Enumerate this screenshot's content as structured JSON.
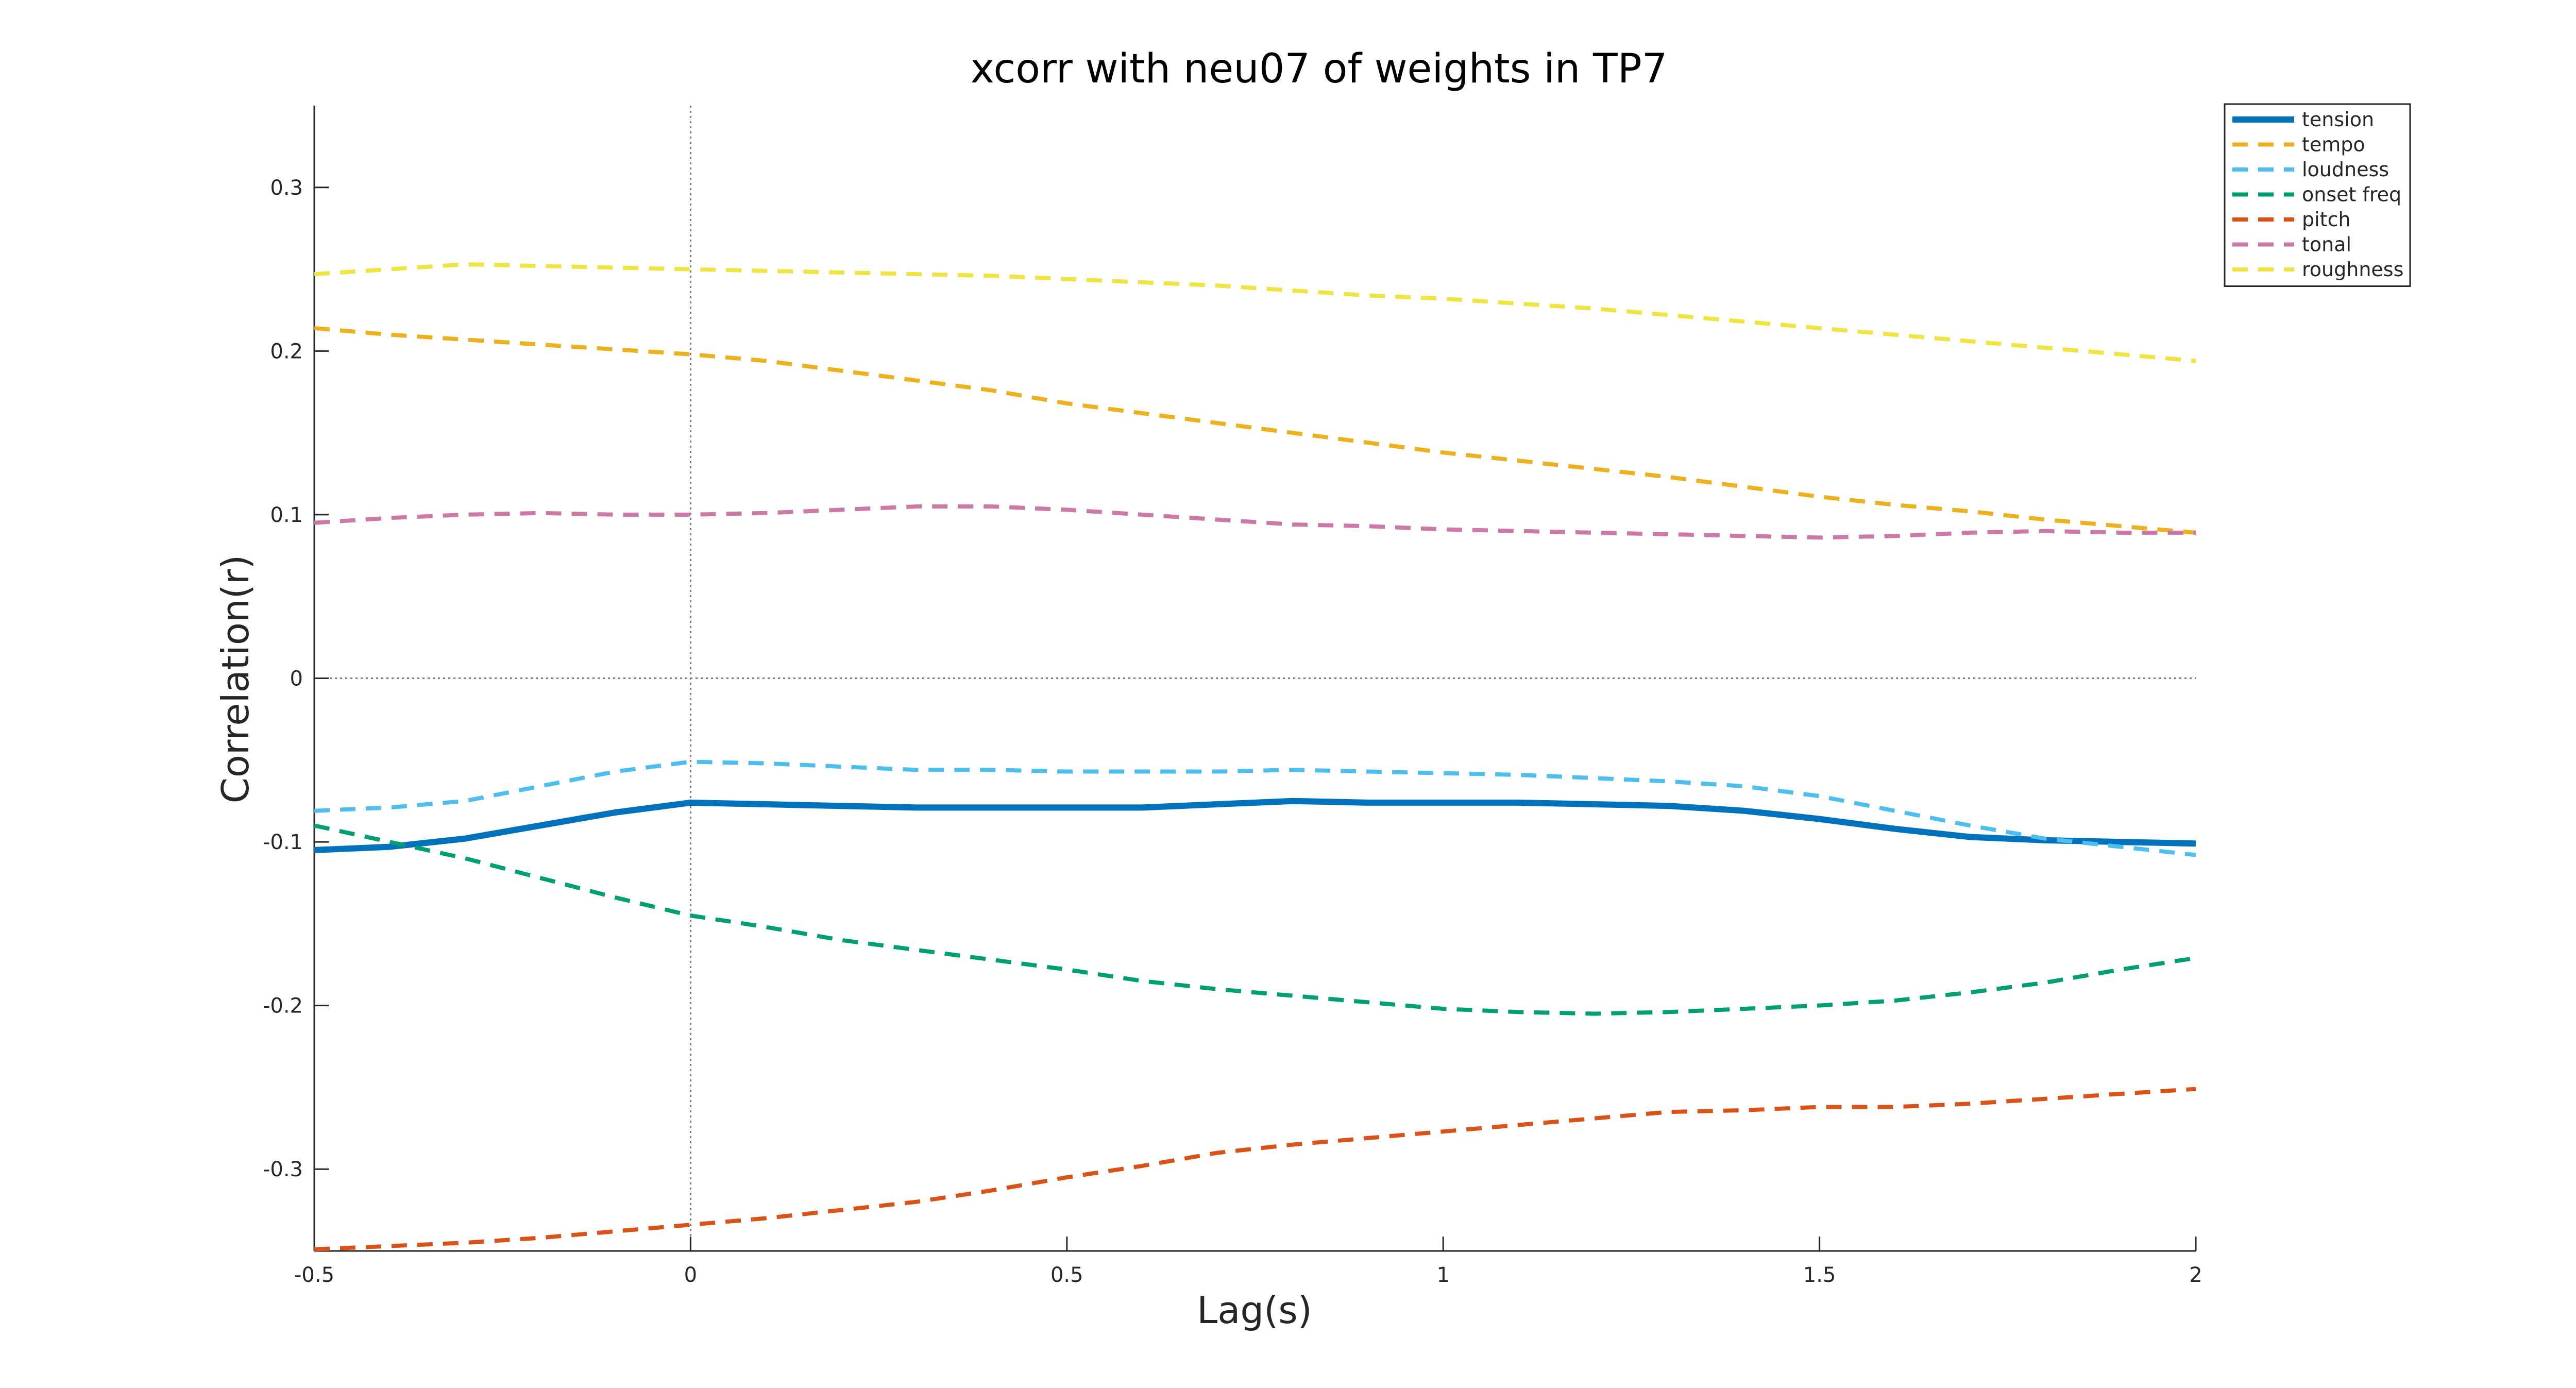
{
  "chart_data": {
    "type": "line",
    "title": "xcorr with neu07 of weights in TP7",
    "xlabel": "Lag(s)",
    "ylabel": "Correlation(r)",
    "xlim": [
      -0.5,
      2
    ],
    "ylim": [
      -0.35,
      0.35
    ],
    "x_ticks": [
      -0.5,
      0,
      0.5,
      1,
      1.5,
      2
    ],
    "x_tick_labels": [
      "-0.5",
      "0",
      "0.5",
      "1",
      "1.5",
      "2"
    ],
    "y_ticks": [
      0.3,
      0.2,
      0.1,
      0,
      -0.1,
      -0.2,
      -0.3
    ],
    "y_tick_labels": [
      "0.3",
      "0.2",
      "0.1",
      "0",
      "-0.1",
      "-0.2",
      "-0.3"
    ],
    "grid": false,
    "reference_lines": {
      "x": 0,
      "y": 0,
      "style": "dotted"
    },
    "legend_position": "top-right",
    "x": [
      -0.5,
      -0.4,
      -0.3,
      -0.2,
      -0.1,
      0,
      0.1,
      0.2,
      0.3,
      0.4,
      0.5,
      0.6,
      0.7,
      0.8,
      0.9,
      1.0,
      1.1,
      1.2,
      1.3,
      1.4,
      1.5,
      1.6,
      1.7,
      1.8,
      1.9,
      2.0
    ],
    "series": [
      {
        "name": "tension",
        "color": "#0072BD",
        "dash": "solid",
        "width": 12,
        "values": [
          -0.105,
          -0.103,
          -0.098,
          -0.09,
          -0.082,
          -0.076,
          -0.077,
          -0.078,
          -0.079,
          -0.079,
          -0.079,
          -0.079,
          -0.077,
          -0.075,
          -0.076,
          -0.076,
          -0.076,
          -0.077,
          -0.078,
          -0.081,
          -0.086,
          -0.092,
          -0.097,
          -0.099,
          -0.1,
          -0.101
        ]
      },
      {
        "name": "tempo",
        "color": "#EDB120",
        "dash": "dashed",
        "width": 8,
        "values": [
          0.214,
          0.21,
          0.207,
          0.204,
          0.201,
          0.198,
          0.194,
          0.188,
          0.182,
          0.176,
          0.168,
          0.162,
          0.156,
          0.15,
          0.144,
          0.138,
          0.133,
          0.128,
          0.123,
          0.117,
          0.111,
          0.106,
          0.102,
          0.097,
          0.093,
          0.089
        ]
      },
      {
        "name": "loudness",
        "color": "#4DBEEE",
        "dash": "dashed",
        "width": 8,
        "values": [
          -0.081,
          -0.079,
          -0.075,
          -0.066,
          -0.057,
          -0.051,
          -0.052,
          -0.054,
          -0.056,
          -0.056,
          -0.057,
          -0.057,
          -0.057,
          -0.056,
          -0.057,
          -0.058,
          -0.059,
          -0.061,
          -0.063,
          -0.066,
          -0.072,
          -0.081,
          -0.09,
          -0.098,
          -0.103,
          -0.108
        ]
      },
      {
        "name": "onset freq",
        "color": "#009E73",
        "dash": "dashed",
        "width": 8,
        "values": [
          -0.09,
          -0.1,
          -0.11,
          -0.122,
          -0.134,
          -0.145,
          -0.152,
          -0.16,
          -0.166,
          -0.172,
          -0.178,
          -0.185,
          -0.19,
          -0.194,
          -0.198,
          -0.202,
          -0.204,
          -0.205,
          -0.204,
          -0.202,
          -0.2,
          -0.197,
          -0.192,
          -0.186,
          -0.178,
          -0.171
        ]
      },
      {
        "name": "pitch",
        "color": "#D95319",
        "dash": "dashed",
        "width": 8,
        "values": [
          -0.349,
          -0.347,
          -0.345,
          -0.342,
          -0.338,
          -0.334,
          -0.33,
          -0.325,
          -0.32,
          -0.313,
          -0.305,
          -0.298,
          -0.29,
          -0.285,
          -0.281,
          -0.277,
          -0.273,
          -0.269,
          -0.265,
          -0.264,
          -0.262,
          -0.262,
          -0.26,
          -0.257,
          -0.254,
          -0.251
        ]
      },
      {
        "name": "tonal",
        "color": "#CC79A7",
        "dash": "dashed",
        "width": 8,
        "values": [
          0.095,
          0.098,
          0.1,
          0.101,
          0.1,
          0.1,
          0.101,
          0.103,
          0.105,
          0.105,
          0.103,
          0.1,
          0.097,
          0.094,
          0.093,
          0.091,
          0.09,
          0.089,
          0.088,
          0.087,
          0.086,
          0.087,
          0.089,
          0.09,
          0.089,
          0.089
        ]
      },
      {
        "name": "roughness",
        "color": "#F0E442",
        "dash": "dashed",
        "width": 8,
        "values": [
          0.247,
          0.25,
          0.253,
          0.252,
          0.251,
          0.25,
          0.249,
          0.248,
          0.247,
          0.246,
          0.244,
          0.242,
          0.24,
          0.237,
          0.234,
          0.232,
          0.229,
          0.226,
          0.222,
          0.218,
          0.214,
          0.21,
          0.206,
          0.202,
          0.198,
          0.194
        ]
      }
    ]
  }
}
